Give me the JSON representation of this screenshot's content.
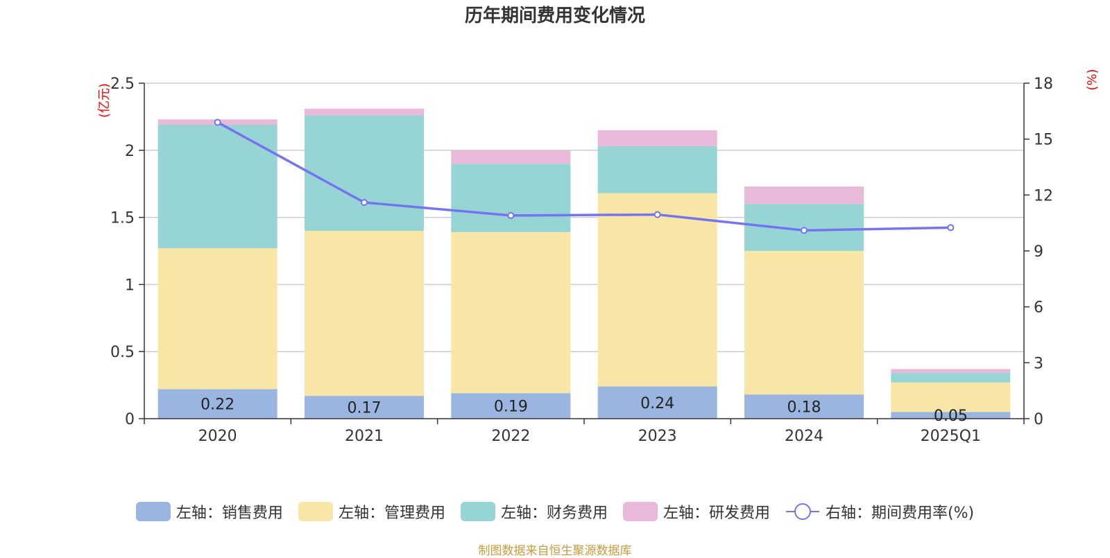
{
  "title": "历年期间费用变化情况",
  "colors": {
    "sales": "#9ab6e0",
    "admin": "#f8e6a6",
    "finance": "#97d4d4",
    "rd": "#e8b9d8",
    "rate_line": "#7474f0",
    "axis_unit": "#ff0000",
    "source": "#c89b3c"
  },
  "chart_data": {
    "type": "bar",
    "stacked": true,
    "categories": [
      "2020",
      "2021",
      "2022",
      "2023",
      "2024",
      "2025Q1"
    ],
    "series": [
      {
        "name": "左轴：销售费用",
        "axis": "left",
        "values": [
          0.22,
          0.17,
          0.19,
          0.24,
          0.18,
          0.05
        ]
      },
      {
        "name": "左轴：管理费用",
        "axis": "left",
        "values": [
          1.05,
          1.23,
          1.2,
          1.44,
          1.07,
          0.22
        ]
      },
      {
        "name": "左轴：财务费用",
        "axis": "left",
        "values": [
          0.92,
          0.86,
          0.51,
          0.35,
          0.35,
          0.07
        ]
      },
      {
        "name": "左轴：研发费用",
        "axis": "left",
        "values": [
          0.04,
          0.05,
          0.1,
          0.12,
          0.13,
          0.03
        ]
      },
      {
        "name": "右轴：期间费用率(%)",
        "axis": "right",
        "type": "line",
        "values": [
          15.9,
          11.6,
          10.9,
          10.95,
          10.1,
          10.25
        ]
      }
    ],
    "data_labels": [
      "0.22",
      "0.17",
      "0.19",
      "0.24",
      "0.18",
      "0.05"
    ],
    "left_axis": {
      "unit": "(亿元)",
      "min": 0,
      "max": 2.5,
      "ticks": [
        "0",
        "0.5",
        "1",
        "1.5",
        "2",
        "2.5"
      ]
    },
    "right_axis": {
      "unit": "(%)",
      "min": 0,
      "max": 18,
      "ticks": [
        "0",
        "3",
        "6",
        "9",
        "12",
        "15",
        "18"
      ]
    },
    "grid": true,
    "legend_position": "bottom"
  },
  "legend": {
    "items": [
      {
        "label": "左轴：销售费用",
        "kind": "box",
        "color_key": "sales"
      },
      {
        "label": "左轴：管理费用",
        "kind": "box",
        "color_key": "admin"
      },
      {
        "label": "左轴：财务费用",
        "kind": "box",
        "color_key": "finance"
      },
      {
        "label": "左轴：研发费用",
        "kind": "box",
        "color_key": "rd"
      },
      {
        "label": "右轴：期间费用率(%)",
        "kind": "line",
        "color_key": "rate_line"
      }
    ]
  },
  "source_note": "制图数据来自恒生聚源数据库"
}
